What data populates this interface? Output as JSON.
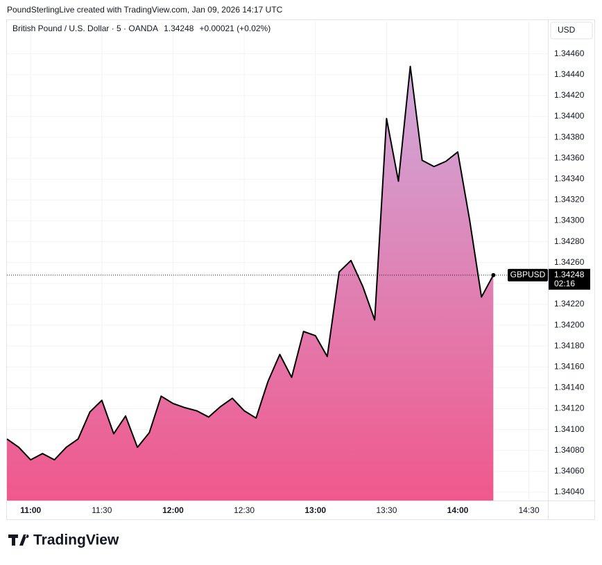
{
  "header": "PoundSterlingLive created with TradingView.com, Jan 09, 2026 14:17 UTC",
  "logo": "TradingView",
  "chart_data": {
    "type": "area",
    "symbol_title": "British Pound / U.S. Dollar · 5 · OANDA",
    "last": "1.34248",
    "change": "+0.00021 (+0.02%)",
    "currency": "USD",
    "last_price_label": "1.34248",
    "countdown": "02:16",
    "x": [
      "10:50",
      "10:55",
      "11:00",
      "11:05",
      "11:10",
      "11:15",
      "11:20",
      "11:25",
      "11:30",
      "11:35",
      "11:40",
      "11:45",
      "11:50",
      "11:55",
      "12:00",
      "12:05",
      "12:10",
      "12:15",
      "12:20",
      "12:25",
      "12:30",
      "12:35",
      "12:40",
      "12:45",
      "12:50",
      "12:55",
      "13:00",
      "13:05",
      "13:10",
      "13:15",
      "13:20",
      "13:25",
      "13:30",
      "13:35",
      "13:40",
      "13:45",
      "13:50",
      "13:55",
      "14:00",
      "14:05",
      "14:10",
      "14:15"
    ],
    "series": [
      {
        "name": "GBPUSD",
        "color": "#000000",
        "values": [
          1.34091,
          1.34083,
          1.34071,
          1.34077,
          1.34071,
          1.34083,
          1.34091,
          1.34117,
          1.34128,
          1.34096,
          1.34113,
          1.34083,
          1.34097,
          1.34132,
          1.34125,
          1.34121,
          1.34118,
          1.34112,
          1.34122,
          1.3413,
          1.34118,
          1.34111,
          1.34146,
          1.34172,
          1.3415,
          1.34194,
          1.3419,
          1.3417,
          1.34251,
          1.34262,
          1.34237,
          1.34205,
          1.34398,
          1.34338,
          1.34448,
          1.34358,
          1.34352,
          1.34357,
          1.34366,
          1.34301,
          1.34227,
          1.34248
        ]
      }
    ],
    "xlim": [
      "10:50",
      "14:38"
    ],
    "xticks": [
      "11:00",
      "11:30",
      "12:00",
      "12:30",
      "13:00",
      "13:30",
      "14:00",
      "14:30"
    ],
    "ylim": [
      1.34032,
      1.34493
    ],
    "yticks": [
      {
        "value": 1.3404,
        "label": "1.34040"
      },
      {
        "value": 1.3406,
        "label": "1.34060"
      },
      {
        "value": 1.3408,
        "label": "1.34080"
      },
      {
        "value": 1.341,
        "label": "1.34100"
      },
      {
        "value": 1.3412,
        "label": "1.34120"
      },
      {
        "value": 1.3414,
        "label": "1.34140"
      },
      {
        "value": 1.3416,
        "label": "1.34160"
      },
      {
        "value": 1.3418,
        "label": "1.34180"
      },
      {
        "value": 1.342,
        "label": "1.34200"
      },
      {
        "value": 1.3422,
        "label": "1.34220"
      },
      {
        "value": 1.3424,
        "label": "1.34240"
      },
      {
        "value": 1.3426,
        "label": "1.34260"
      },
      {
        "value": 1.3428,
        "label": "1.34280"
      },
      {
        "value": 1.343,
        "label": "1.34300"
      },
      {
        "value": 1.3432,
        "label": "1.34320"
      },
      {
        "value": 1.3434,
        "label": "1.34340"
      },
      {
        "value": 1.3436,
        "label": "1.34360"
      },
      {
        "value": 1.3438,
        "label": "1.34380"
      },
      {
        "value": 1.344,
        "label": "1.34400"
      },
      {
        "value": 1.3442,
        "label": "1.34420"
      },
      {
        "value": 1.3444,
        "label": "1.34440"
      },
      {
        "value": 1.3446,
        "label": "1.34460"
      }
    ],
    "grid": true,
    "fill_top": "#cfaadb",
    "fill_bottom": "#f0588c"
  }
}
